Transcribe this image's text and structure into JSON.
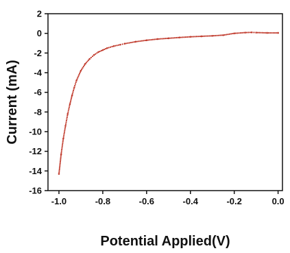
{
  "chart_data": {
    "type": "scatter",
    "xlabel": "Potential Applied(V)",
    "ylabel": "Current (mA)",
    "xlim": [
      -1.05,
      0.02
    ],
    "ylim": [
      -16,
      2
    ],
    "x_ticks": [
      -1.0,
      -0.8,
      -0.6,
      -0.4,
      -0.2,
      0.0
    ],
    "x_tick_labels": [
      "-1.0",
      "-0.8",
      "-0.6",
      "-0.4",
      "-0.2",
      "0.0"
    ],
    "y_ticks": [
      2,
      0,
      -2,
      -4,
      -6,
      -8,
      -10,
      -12,
      -14,
      -16
    ],
    "y_tick_labels": [
      "2",
      "0",
      "-2",
      "-4",
      "-6",
      "-8",
      "-10",
      "-12",
      "-14",
      "-16"
    ],
    "grid": false,
    "marker_color": "#c0392b",
    "series": [
      {
        "x": [
          -1.0,
          -0.99,
          -0.98,
          -0.97,
          -0.96,
          -0.95,
          -0.94,
          -0.93,
          -0.92,
          -0.9,
          -0.88,
          -0.86,
          -0.84,
          -0.82,
          -0.8,
          -0.78,
          -0.75,
          -0.72,
          -0.7,
          -0.65,
          -0.6,
          -0.55,
          -0.5,
          -0.45,
          -0.4,
          -0.35,
          -0.3,
          -0.25,
          -0.2,
          -0.15,
          -0.12,
          -0.1,
          -0.05,
          0.0
        ],
        "y": [
          -14.3,
          -12.3,
          -10.7,
          -9.4,
          -8.2,
          -7.2,
          -6.3,
          -5.5,
          -4.8,
          -3.8,
          -3.1,
          -2.6,
          -2.2,
          -1.9,
          -1.7,
          -1.5,
          -1.3,
          -1.15,
          -1.05,
          -0.85,
          -0.7,
          -0.58,
          -0.5,
          -0.42,
          -0.35,
          -0.3,
          -0.25,
          -0.18,
          0.0,
          0.08,
          0.1,
          0.08,
          0.05,
          0.05
        ]
      }
    ]
  }
}
